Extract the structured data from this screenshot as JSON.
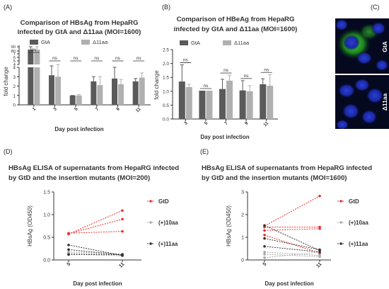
{
  "panels": {
    "A": {
      "letter": "(A)",
      "title_line1": "Comparison of HBsAg from HepaRG",
      "title_line2": "infected by GtA and Δ11aa (MOI=1600)"
    },
    "B": {
      "letter": "(B)",
      "title_line1": "Comparison of HBeAg from HepaRG",
      "title_line2": "infected by GtA and Δ11aa (MOI=1600)"
    },
    "C": {
      "letter": "(C)",
      "label_top": "GtA",
      "label_bottom": "Δ11aa"
    },
    "D": {
      "letter": "(D)",
      "title_line1": "HBsAg ELISA of supernatants from HepaRG infected",
      "title_line2": "by GtD and the insertion mutants (MOI=200)"
    },
    "E": {
      "letter": "(E)",
      "title_line1": "HBsAg ELISA of supernatants from HepaRG infected",
      "title_line2": "by GtD and the insertion mutants (MOI=1600)"
    }
  },
  "colors": {
    "gta": "#5a5a5a",
    "d11": "#b0b0b0",
    "gtd": "#e8302a",
    "ins10": "#a8a8a8",
    "ins11": "#333333",
    "micro_bg": "#05091f",
    "nucleus": "#1d2fb8",
    "signal": "#3fd03a"
  },
  "chart_data": [
    {
      "panel": "A",
      "type": "bar",
      "title": "Comparison of HBsAg from HepaRG infected by GtA and Δ11aa (MOI=1600)",
      "xlabel": "Day post infection",
      "ylabel": "fold change",
      "categories": [
        "1",
        "3",
        "5",
        "7",
        "9",
        "11"
      ],
      "y_ticks_lower": [
        "0",
        "1",
        "2",
        "3",
        "4"
      ],
      "y_ticks_upper": [
        "4",
        "5",
        "6",
        "7",
        "80",
        "90"
      ],
      "axis_break": true,
      "series": [
        {
          "name": "GtA",
          "values": [
            30,
            3.15,
            1.0,
            2.5,
            2.8,
            2.5
          ],
          "errors": [
            55,
            1.0,
            0.0,
            0.5,
            1.2,
            0.3
          ]
        },
        {
          "name": "Δ11aa",
          "values": [
            30,
            3.0,
            1.0,
            2.1,
            2.2,
            2.9
          ],
          "errors": [
            40,
            1.4,
            0.1,
            0.9,
            0.5,
            0.5
          ]
        }
      ],
      "annotations": [
        "ns",
        "ns",
        "ns",
        "ns",
        "ns",
        "ns"
      ],
      "legend_position": "top"
    },
    {
      "panel": "B",
      "type": "bar",
      "title": "Comparison of HBeAg from HepaRG infected by GtA and Δ11aa (MOI=1600)",
      "xlabel": "Day post infection",
      "ylabel": "fold change",
      "categories": [
        "3",
        "5",
        "7",
        "9",
        "11"
      ],
      "y_ticks": [
        "0.0",
        "0.5",
        "1.0",
        "1.5",
        "2.0",
        "2.5"
      ],
      "ylim": [
        0,
        2.5
      ],
      "series": [
        {
          "name": "GtA",
          "values": [
            1.35,
            1.02,
            1.08,
            1.03,
            1.25
          ],
          "errors": [
            0.6,
            0.0,
            0.35,
            0.35,
            0.2
          ]
        },
        {
          "name": "Δ11aa",
          "values": [
            1.15,
            1.02,
            1.38,
            1.0,
            1.2
          ],
          "errors": [
            0.1,
            0.0,
            0.2,
            0.2,
            0.4
          ]
        }
      ],
      "annotations": [
        "ns",
        "ns",
        "ns",
        "ns",
        "ns"
      ],
      "legend_position": "top"
    },
    {
      "panel": "D",
      "type": "line",
      "title": "HBsAg ELISA of supernatants from HepaRG infected by GtD and the insertion mutants (MOI=200)",
      "xlabel": "Day post infection",
      "ylabel": "HBsAg (OD450)",
      "categories": [
        "5",
        "11"
      ],
      "y_ticks": [
        "0.0",
        "0.5",
        "1.0",
        "1.5"
      ],
      "ylim": [
        0,
        1.5
      ],
      "series": [
        {
          "name": "GtD",
          "lines": [
            [
              0.57,
              1.09
            ],
            [
              0.58,
              0.9
            ],
            [
              0.59,
              0.63
            ]
          ]
        },
        {
          "name": "(+)10aa",
          "lines": [
            [
              0.18,
              0.13
            ],
            [
              0.15,
              0.11
            ],
            [
              0.13,
              0.09
            ]
          ]
        },
        {
          "name": "(+)11aa",
          "lines": [
            [
              0.33,
              0.1
            ],
            [
              0.23,
              0.11
            ],
            [
              0.12,
              0.12
            ]
          ]
        }
      ],
      "legend_position": "right"
    },
    {
      "panel": "E",
      "type": "line",
      "title": "HBsAg ELISA of supernatants from HepaRG infected by GtD and the insertion mutants (MOI=1600)",
      "xlabel": "Day post infection",
      "ylabel": "HBsAg (OD450)",
      "categories": [
        "5",
        "11"
      ],
      "y_ticks": [
        "0",
        "1",
        "2",
        "3"
      ],
      "ylim": [
        0,
        3
      ],
      "series": [
        {
          "name": "GtD",
          "lines": [
            [
              1.5,
              2.82
            ],
            [
              1.45,
              1.45
            ],
            [
              1.3,
              1.38
            ],
            [
              1.1,
              0.3
            ]
          ]
        },
        {
          "name": "(+)10aa",
          "lines": [
            [
              0.35,
              0.2
            ],
            [
              0.25,
              0.15
            ],
            [
              0.1,
              0.35
            ]
          ]
        },
        {
          "name": "(+)11aa",
          "lines": [
            [
              1.52,
              0.42
            ],
            [
              0.95,
              0.45
            ],
            [
              0.6,
              0.35
            ]
          ]
        }
      ],
      "legend_position": "right"
    }
  ]
}
